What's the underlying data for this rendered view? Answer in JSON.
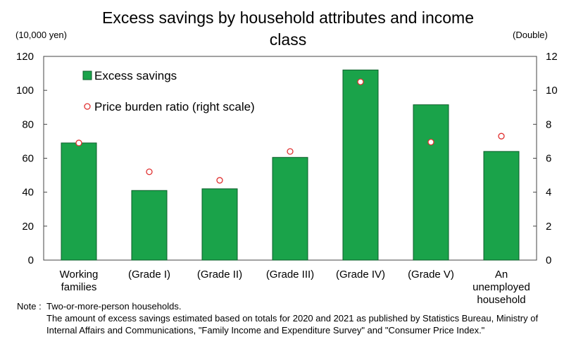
{
  "title_line1": "Excess savings by household attributes and income",
  "title_line2": "class",
  "left_unit": "(10,000 yen)",
  "right_unit": "(Double)",
  "notes": {
    "prefix": "Note :",
    "line1": "Two-or-more-person households.",
    "line2": "The amount of excess savings estimated based on totals for 2020 and 2021 as published by Statistics Bureau, Ministry of Internal Affairs and Communications, \"Family Income and Expenditure Survey\" and \"Consumer Price Index.\""
  },
  "colors": {
    "bar": "#1aa34a",
    "bar_edge": "#0b5e2a",
    "marker_edge": "#e03030",
    "axis": "#444444"
  },
  "chart_data": {
    "type": "bar",
    "categories": [
      [
        "Working",
        "families"
      ],
      [
        "(Grade I)"
      ],
      [
        "(Grade II)"
      ],
      [
        "(Grade III)"
      ],
      [
        "(Grade IV)"
      ],
      [
        "(Grade V)"
      ],
      [
        "An",
        "unemployed",
        "household"
      ]
    ],
    "series": [
      {
        "name": "Excess savings",
        "kind": "bar",
        "axis": "left",
        "values": [
          69,
          41,
          42,
          60.5,
          112,
          91.5,
          64
        ]
      },
      {
        "name": "Price burden ratio (right scale)",
        "kind": "marker",
        "axis": "right",
        "values": [
          6.9,
          5.2,
          4.7,
          6.4,
          10.5,
          6.95,
          7.3
        ]
      }
    ],
    "ylim": [
      0,
      120
    ],
    "yticks": [
      "0",
      "20",
      "40",
      "60",
      "80",
      "100",
      "120"
    ],
    "y2lim": [
      0,
      12
    ],
    "y2ticks": [
      "0",
      "2",
      "4",
      "6",
      "8",
      "10",
      "12"
    ],
    "grid": false,
    "legend_position": "top-left"
  }
}
